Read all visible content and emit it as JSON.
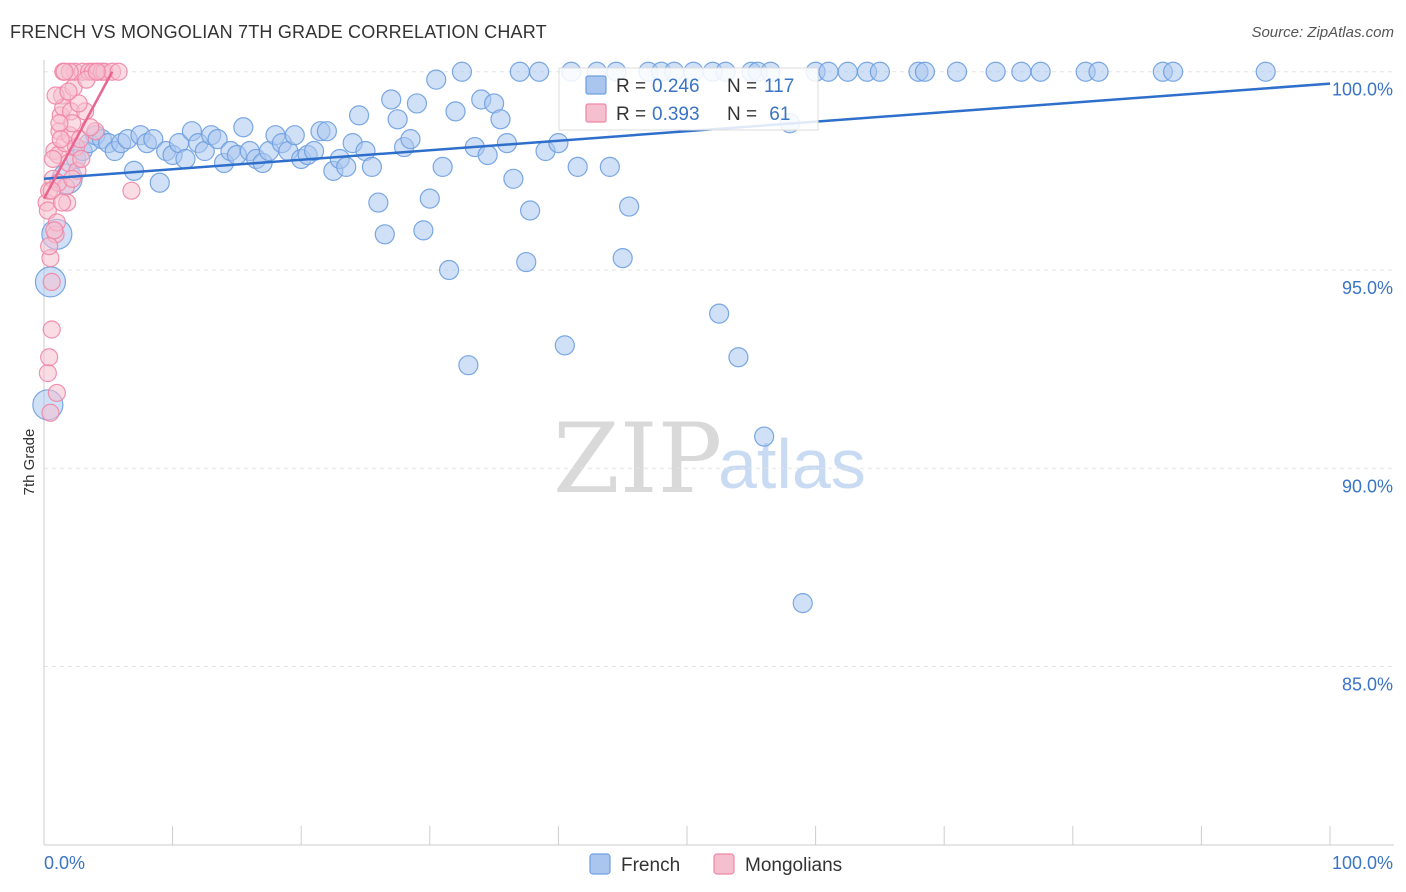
{
  "header": {
    "title": "FRENCH VS MONGOLIAN 7TH GRADE CORRELATION CHART",
    "source": "Source: ZipAtlas.com"
  },
  "watermark": {
    "zip": "ZIP",
    "atlas": "atlas"
  },
  "colors": {
    "french": "#6d9fe0",
    "french_fill": "#aac6ee",
    "french_line": "#2f6fcc",
    "mongolian": "#ef86a6",
    "mongolian_fill": "#f6bfd0",
    "mongolian_line": "#e9658f",
    "tick_label": "#3a74c4",
    "grid": "#e3e3e3"
  },
  "legend_top": {
    "french": {
      "r_label": "R = ",
      "r_value": "0.246",
      "n_label": "N = ",
      "n_value": "117"
    },
    "mongolian": {
      "r_label": "R = ",
      "r_value": "0.393",
      "n_label": "N = ",
      "n_value": " 61"
    }
  },
  "legend_bottom": {
    "french": "French",
    "mongolians": "Mongolians"
  },
  "chart_data": {
    "type": "scatter",
    "title": "FRENCH VS MONGOLIAN 7TH GRADE CORRELATION CHART",
    "xlabel": "",
    "ylabel": "7th Grade",
    "xlim": [
      0,
      100
    ],
    "ylim": [
      80.5,
      100.8
    ],
    "x_tick_labels": [
      "0.0%",
      "100.0%"
    ],
    "y_ticks": [
      85,
      90,
      95,
      100
    ],
    "y_tick_labels": [
      "85.0%",
      "90.0%",
      "95.0%",
      "100.0%"
    ],
    "grid": true,
    "series": [
      {
        "name": "French",
        "R": 0.246,
        "N": 117,
        "trend": {
          "x": [
            0,
            100
          ],
          "y": [
            97.3,
            99.7
          ]
        },
        "points": [
          [
            0.3,
            91.6
          ],
          [
            0.5,
            94.7
          ],
          [
            1.0,
            95.9
          ],
          [
            1.8,
            97.3
          ],
          [
            2.5,
            97.8
          ],
          [
            3.0,
            98.0
          ],
          [
            3.5,
            98.2
          ],
          [
            4.0,
            98.4
          ],
          [
            4.5,
            98.3
          ],
          [
            5.0,
            98.2
          ],
          [
            5.5,
            98.0
          ],
          [
            6.0,
            98.2
          ],
          [
            6.5,
            98.3
          ],
          [
            7.0,
            97.5
          ],
          [
            7.5,
            98.4
          ],
          [
            8.0,
            98.2
          ],
          [
            8.5,
            98.3
          ],
          [
            9.0,
            97.2
          ],
          [
            9.5,
            98.0
          ],
          [
            10.0,
            97.9
          ],
          [
            10.5,
            98.2
          ],
          [
            11.0,
            97.8
          ],
          [
            11.5,
            98.5
          ],
          [
            12.0,
            98.2
          ],
          [
            12.5,
            98.0
          ],
          [
            13.0,
            98.4
          ],
          [
            13.5,
            98.3
          ],
          [
            14.0,
            97.7
          ],
          [
            14.5,
            98.0
          ],
          [
            15.0,
            97.9
          ],
          [
            15.5,
            98.6
          ],
          [
            16.0,
            98.0
          ],
          [
            16.5,
            97.8
          ],
          [
            17.0,
            97.7
          ],
          [
            17.5,
            98.0
          ],
          [
            18.0,
            98.4
          ],
          [
            18.5,
            98.2
          ],
          [
            19.0,
            98.0
          ],
          [
            19.5,
            98.4
          ],
          [
            20.0,
            97.8
          ],
          [
            20.5,
            97.9
          ],
          [
            21.0,
            98.0
          ],
          [
            21.5,
            98.5
          ],
          [
            22.0,
            98.5
          ],
          [
            22.5,
            97.5
          ],
          [
            23.0,
            97.8
          ],
          [
            23.5,
            97.6
          ],
          [
            24.0,
            98.2
          ],
          [
            24.5,
            98.9
          ],
          [
            25.0,
            98.0
          ],
          [
            25.5,
            97.6
          ],
          [
            26.0,
            96.7
          ],
          [
            26.5,
            95.9
          ],
          [
            27.0,
            99.3
          ],
          [
            27.5,
            98.8
          ],
          [
            28.0,
            98.1
          ],
          [
            28.5,
            98.3
          ],
          [
            29.0,
            99.2
          ],
          [
            29.5,
            96.0
          ],
          [
            30.0,
            96.8
          ],
          [
            30.5,
            99.8
          ],
          [
            31.0,
            97.6
          ],
          [
            31.5,
            95.0
          ],
          [
            32.0,
            99.0
          ],
          [
            32.5,
            100.0
          ],
          [
            33.0,
            92.6
          ],
          [
            33.5,
            98.1
          ],
          [
            34.0,
            99.3
          ],
          [
            34.5,
            97.9
          ],
          [
            35.0,
            99.2
          ],
          [
            35.5,
            98.8
          ],
          [
            36.0,
            98.2
          ],
          [
            36.5,
            97.3
          ],
          [
            37.0,
            100.0
          ],
          [
            37.5,
            95.2
          ],
          [
            37.8,
            96.5
          ],
          [
            38.5,
            100.0
          ],
          [
            39.0,
            98.0
          ],
          [
            40.0,
            98.2
          ],
          [
            40.5,
            93.1
          ],
          [
            41.0,
            100.0
          ],
          [
            41.5,
            97.6
          ],
          [
            43.0,
            100.0
          ],
          [
            44.0,
            97.6
          ],
          [
            44.5,
            100.0
          ],
          [
            45.0,
            95.3
          ],
          [
            45.5,
            96.6
          ],
          [
            47.0,
            100.0
          ],
          [
            48.0,
            100.0
          ],
          [
            49.0,
            100.0
          ],
          [
            50.5,
            100.0
          ],
          [
            52.0,
            100.0
          ],
          [
            52.5,
            93.9
          ],
          [
            53.0,
            100.0
          ],
          [
            54.0,
            92.8
          ],
          [
            55.0,
            100.0
          ],
          [
            55.5,
            100.0
          ],
          [
            56.0,
            90.8
          ],
          [
            56.5,
            100.0
          ],
          [
            58.0,
            98.7
          ],
          [
            59.0,
            86.6
          ],
          [
            60.0,
            100.0
          ],
          [
            61.0,
            100.0
          ],
          [
            62.5,
            100.0
          ],
          [
            64.0,
            100.0
          ],
          [
            65.0,
            100.0
          ],
          [
            68.0,
            100.0
          ],
          [
            68.5,
            100.0
          ],
          [
            71.0,
            100.0
          ],
          [
            74.0,
            100.0
          ],
          [
            76.0,
            100.0
          ],
          [
            77.5,
            100.0
          ],
          [
            81.0,
            100.0
          ],
          [
            82.0,
            100.0
          ],
          [
            87.0,
            100.0
          ],
          [
            87.8,
            100.0
          ],
          [
            95.0,
            100.0
          ]
        ]
      },
      {
        "name": "Mongolians",
        "R": 0.393,
        "N": 61,
        "trend": {
          "x": [
            0,
            5.3
          ],
          "y": [
            96.8,
            100.0
          ]
        },
        "points": [
          [
            0.2,
            96.7
          ],
          [
            0.3,
            96.5
          ],
          [
            0.4,
            97.0
          ],
          [
            0.5,
            95.3
          ],
          [
            0.6,
            94.7
          ],
          [
            0.7,
            97.3
          ],
          [
            0.8,
            98.0
          ],
          [
            0.9,
            95.9
          ],
          [
            1.0,
            96.2
          ],
          [
            1.1,
            97.9
          ],
          [
            1.2,
            98.5
          ],
          [
            0.3,
            92.4
          ],
          [
            0.5,
            91.4
          ],
          [
            0.4,
            92.8
          ],
          [
            1.3,
            98.9
          ],
          [
            1.4,
            99.4
          ],
          [
            1.5,
            99.1
          ],
          [
            1.6,
            98.2
          ],
          [
            1.7,
            97.1
          ],
          [
            1.8,
            96.7
          ],
          [
            1.9,
            97.7
          ],
          [
            2.0,
            98.4
          ],
          [
            2.1,
            99.0
          ],
          [
            2.2,
            98.7
          ],
          [
            2.3,
            99.6
          ],
          [
            2.4,
            100.0
          ],
          [
            2.5,
            98.1
          ],
          [
            2.6,
            97.5
          ],
          [
            2.8,
            98.3
          ],
          [
            3.0,
            100.0
          ],
          [
            3.2,
            99.0
          ],
          [
            3.5,
            100.0
          ],
          [
            3.8,
            100.0
          ],
          [
            4.0,
            98.5
          ],
          [
            4.2,
            100.0
          ],
          [
            4.5,
            100.0
          ],
          [
            4.7,
            100.0
          ],
          [
            5.3,
            100.0
          ],
          [
            5.8,
            100.0
          ],
          [
            6.8,
            97.0
          ],
          [
            1.0,
            91.9
          ],
          [
            0.6,
            93.5
          ],
          [
            1.5,
            100.0
          ],
          [
            2.0,
            100.0
          ],
          [
            0.9,
            99.4
          ],
          [
            1.2,
            98.7
          ],
          [
            0.7,
            97.8
          ],
          [
            1.1,
            97.2
          ],
          [
            2.7,
            99.2
          ],
          [
            3.3,
            99.8
          ],
          [
            1.6,
            100.0
          ],
          [
            2.9,
            97.8
          ],
          [
            0.8,
            96.0
          ],
          [
            1.3,
            98.3
          ],
          [
            0.4,
            95.6
          ],
          [
            2.2,
            97.3
          ],
          [
            3.6,
            98.6
          ],
          [
            4.1,
            100.0
          ],
          [
            1.9,
            99.5
          ],
          [
            0.6,
            97.0
          ],
          [
            1.4,
            96.7
          ]
        ]
      }
    ]
  }
}
